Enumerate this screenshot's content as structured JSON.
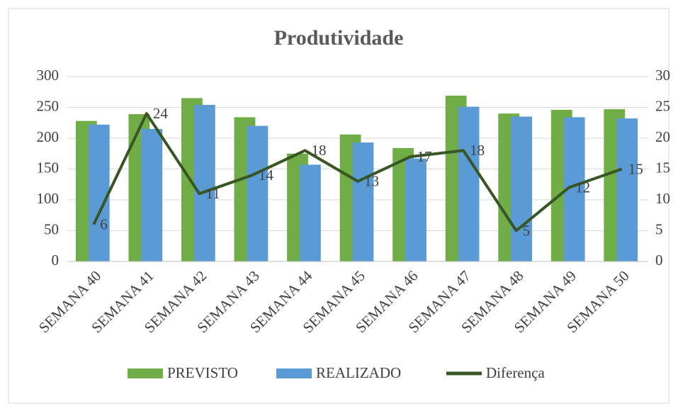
{
  "chart_data": {
    "type": "bar",
    "title": "Produtividade",
    "categories": [
      "SEMANA 40",
      "SEMANA 41",
      "SEMANA 42",
      "SEMANA 43",
      "SEMANA 44",
      "SEMANA 45",
      "SEMANA 46",
      "SEMANA 47",
      "SEMANA 48",
      "SEMANA 49",
      "SEMANA 50"
    ],
    "series": [
      {
        "name": "PREVISTO",
        "color": "#70ad47",
        "values": [
          228,
          239,
          265,
          234,
          175,
          206,
          184,
          269,
          240,
          246,
          247
        ]
      },
      {
        "name": "REALIZADO",
        "color": "#5b9bd5",
        "values": [
          222,
          215,
          254,
          220,
          157,
          193,
          167,
          251,
          235,
          234,
          232
        ]
      },
      {
        "name": "Diferença",
        "color": "#375623",
        "type": "line",
        "axis": "y2",
        "values": [
          6,
          24,
          11,
          14,
          18,
          13,
          17,
          18,
          5,
          12,
          15
        ]
      }
    ],
    "ylim": [
      0,
      300
    ],
    "yticks": [
      0,
      50,
      100,
      150,
      200,
      250,
      300
    ],
    "y2lim": [
      0,
      30
    ],
    "y2ticks": [
      0,
      5,
      10,
      15,
      20,
      25,
      30
    ],
    "grid": true,
    "legend": "bottom"
  }
}
